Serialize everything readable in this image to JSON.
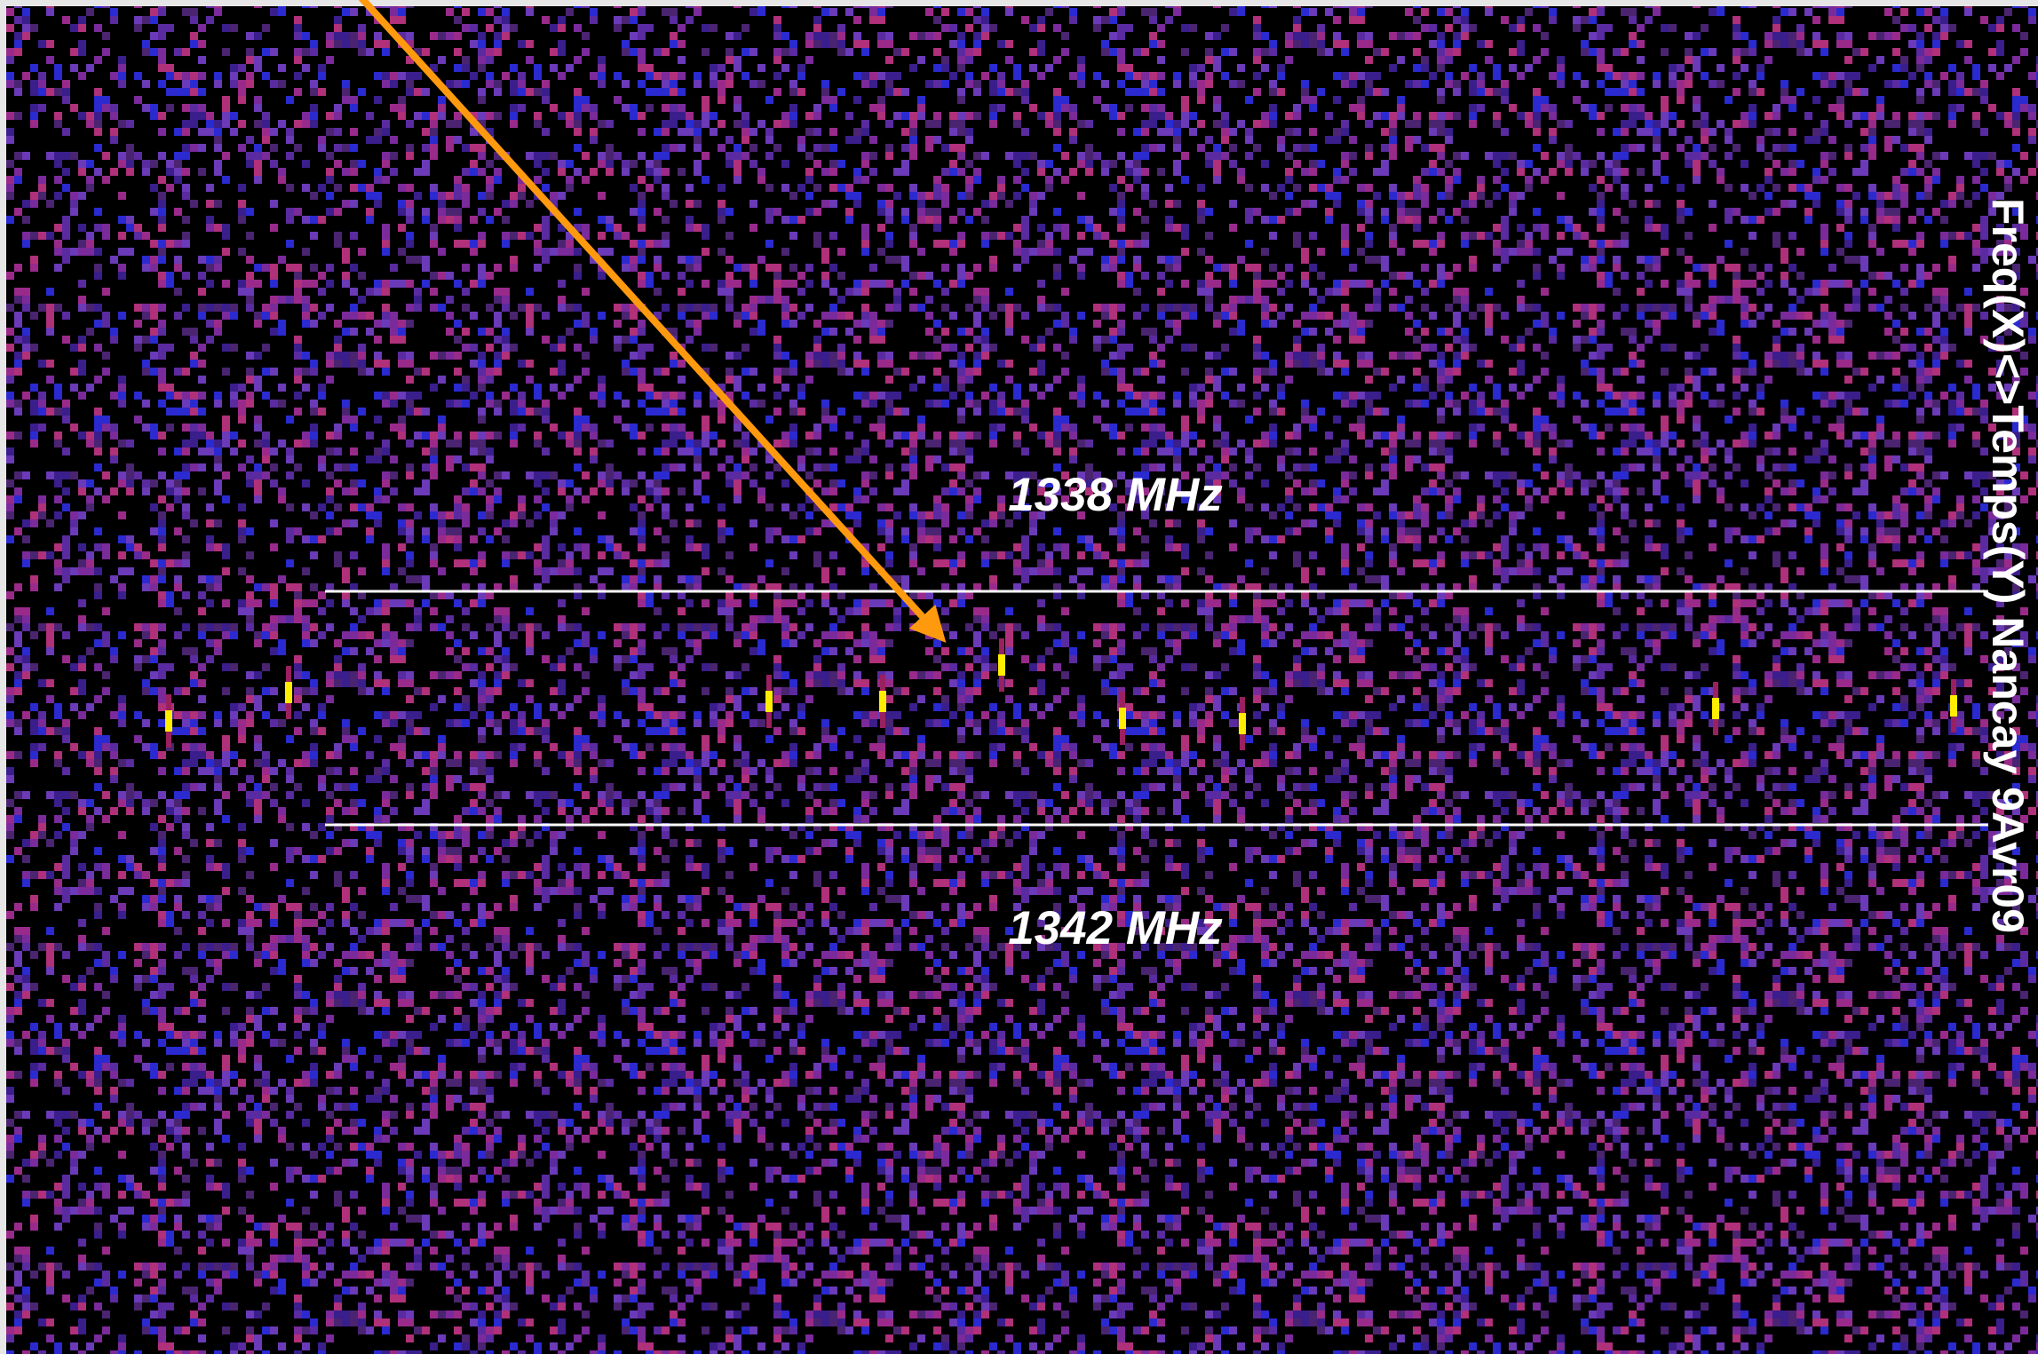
{
  "labels": {
    "upper_frequency": "1338 MHz",
    "lower_frequency": "1342 MHz",
    "axis_note": "Freq(X)<>Temps(Y) Nancay 9Avr09"
  }
}
